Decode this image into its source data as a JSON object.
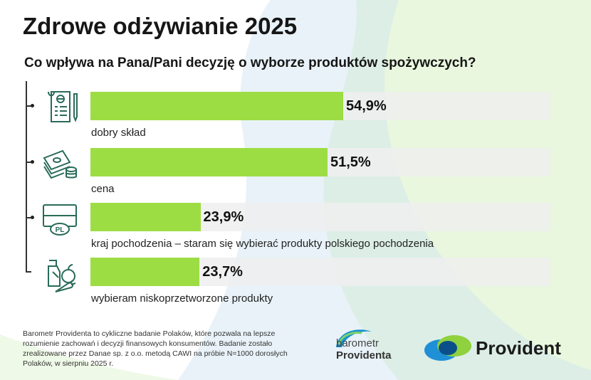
{
  "title": "Zdrowe odżywianie 2025",
  "question": "Co wpływa na Pana/Pani decyzję o wyborze produktów spożywczych?",
  "colors": {
    "bar": "#9ddd44",
    "track": "#eeeeee",
    "bg_green": "#d7f0c2",
    "bg_blue": "#cde3ef"
  },
  "chart_data": {
    "type": "bar",
    "orientation": "horizontal",
    "categories": [
      "dobry skład",
      "cena",
      "kraj pochodzenia – staram się wybierać produkty polskiego pochodzenia",
      "wybieram niskoprzetworzone produkty"
    ],
    "values": [
      54.9,
      51.5,
      23.9,
      23.7
    ],
    "value_labels": [
      "54,9%",
      "51,5%",
      "23,9%",
      "23,7%"
    ],
    "xlim": [
      0,
      100
    ],
    "icons": [
      "recipe-list-icon",
      "money-icon",
      "pl-label-icon",
      "groceries-icon"
    ]
  },
  "footnote": "Barometr Providenta to cykliczne badanie Polaków, które pozwala na lepsze rozumienie zachowań i decyzji finansowych konsumentów. Badanie zostało zrealizowane przez Danae sp. z o.o. metodą CAWI na próbie N=1000 dorosłych Polaków, w sierpniu 2025 r.",
  "logos": {
    "barometr_line1": "barometr",
    "barometr_line2": "Providenta",
    "provident": "Provident"
  }
}
